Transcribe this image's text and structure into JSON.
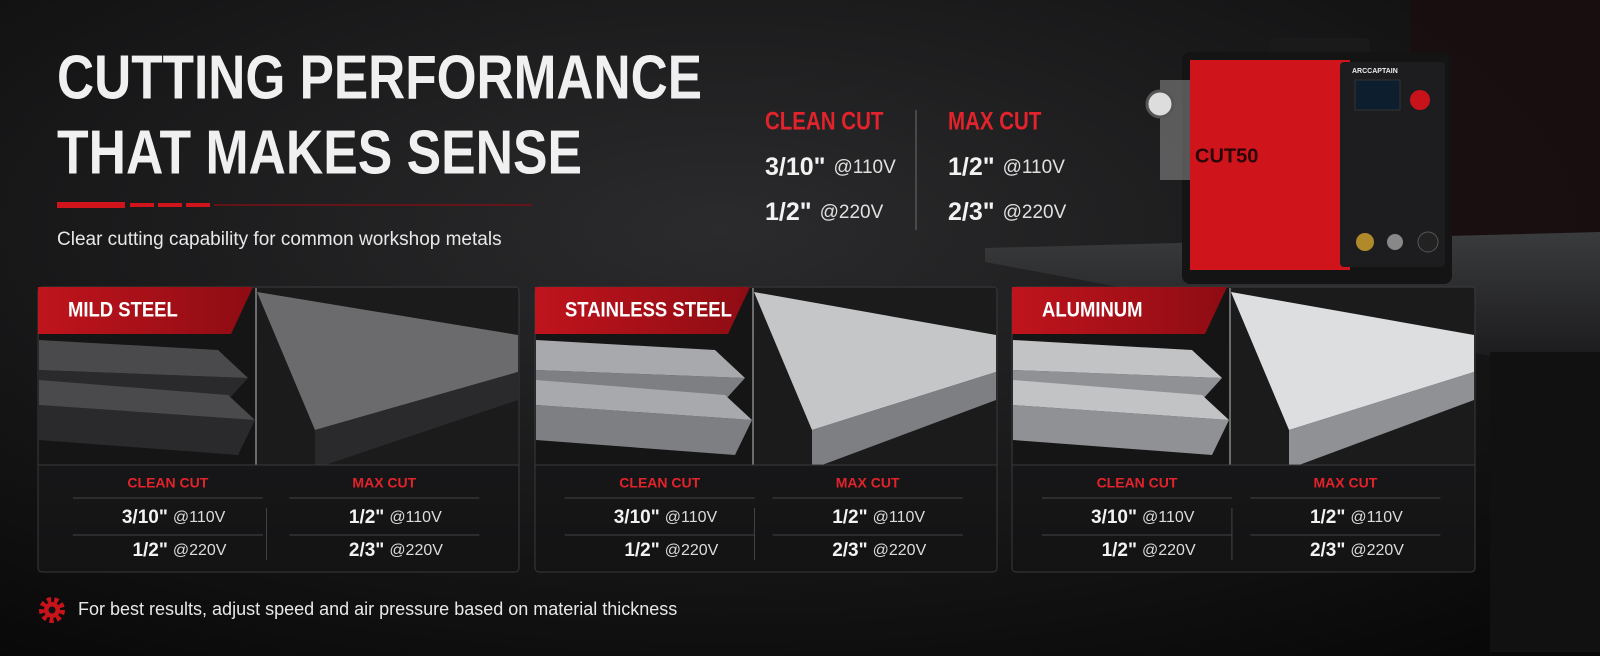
{
  "header": {
    "title": [
      "CUTTING PERFORMANCE",
      "THAT MAKES SENSE"
    ],
    "subtitle": "Clear cutting capability for common workshop metals"
  },
  "summary": [
    {
      "label": "CLEAN CUT",
      "rows": [
        {
          "value": "3/10\"",
          "voltage": "@110V"
        },
        {
          "value": "1/2\"",
          "voltage": "@220V"
        }
      ]
    },
    {
      "label": "MAX CUT",
      "rows": [
        {
          "value": "1/2\"",
          "voltage": "@110V"
        },
        {
          "value": "2/3\"",
          "voltage": "@220V"
        }
      ]
    }
  ],
  "materials": [
    {
      "name": "MILD STEEL",
      "columns": [
        {
          "label": "CLEAN CUT",
          "rows": [
            {
              "value": "3/10\"",
              "voltage": "@110V"
            },
            {
              "value": "1/2\"",
              "voltage": "@220V"
            }
          ]
        },
        {
          "label": "MAX CUT",
          "rows": [
            {
              "value": "1/2\"",
              "voltage": "@110V"
            },
            {
              "value": "2/3\"",
              "voltage": "@220V"
            }
          ]
        }
      ]
    },
    {
      "name": "STAINLESS STEEL",
      "columns": [
        {
          "label": "CLEAN CUT",
          "rows": [
            {
              "value": "3/10\"",
              "voltage": "@110V"
            },
            {
              "value": "1/2\"",
              "voltage": "@220V"
            }
          ]
        },
        {
          "label": "MAX CUT",
          "rows": [
            {
              "value": "1/2\"",
              "voltage": "@110V"
            },
            {
              "value": "2/3\"",
              "voltage": "@220V"
            }
          ]
        }
      ]
    },
    {
      "name": "ALUMINUM",
      "columns": [
        {
          "label": "CLEAN CUT",
          "rows": [
            {
              "value": "3/10\"",
              "voltage": "@110V"
            },
            {
              "value": "1/2\"",
              "voltage": "@220V"
            }
          ]
        },
        {
          "label": "MAX CUT",
          "rows": [
            {
              "value": "1/2\"",
              "voltage": "@110V"
            },
            {
              "value": "2/3\"",
              "voltage": "@220V"
            }
          ]
        }
      ]
    }
  ],
  "product": {
    "brand": "ARCCAPTAIN",
    "model": "CUT50"
  },
  "footer": {
    "note": "For best results, adjust speed and air pressure based on material thickness"
  }
}
